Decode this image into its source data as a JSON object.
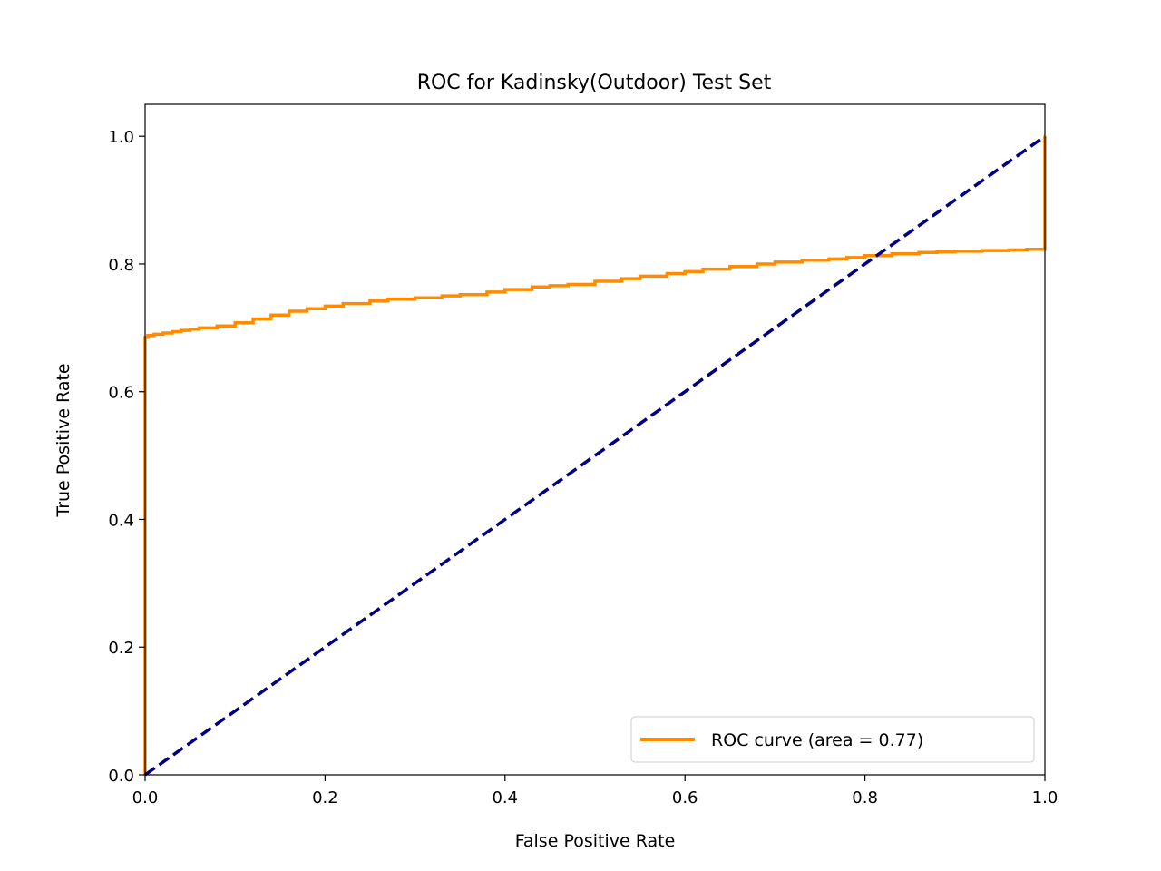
{
  "chart_data": {
    "type": "line",
    "title": "ROC for Kadinsky(Outdoor) Test Set",
    "xlabel": "False Positive Rate",
    "ylabel": "True Positive Rate",
    "xlim": [
      0.0,
      1.0
    ],
    "ylim": [
      0.0,
      1.05
    ],
    "x_ticks": [
      "0.0",
      "0.2",
      "0.4",
      "0.6",
      "0.8",
      "1.0"
    ],
    "y_ticks": [
      "0.0",
      "0.2",
      "0.4",
      "0.6",
      "0.8",
      "1.0"
    ],
    "grid": false,
    "legend_position": "lower-right",
    "series": [
      {
        "name": "ROC curve (area = 0.77)",
        "color": "#ff8c00",
        "style": "solid",
        "step": true,
        "x": [
          0.0,
          0.0,
          0.003,
          0.01,
          0.02,
          0.03,
          0.04,
          0.05,
          0.06,
          0.08,
          0.1,
          0.12,
          0.14,
          0.16,
          0.18,
          0.2,
          0.22,
          0.25,
          0.27,
          0.3,
          0.33,
          0.35,
          0.38,
          0.4,
          0.43,
          0.45,
          0.47,
          0.5,
          0.53,
          0.55,
          0.58,
          0.6,
          0.62,
          0.65,
          0.68,
          0.7,
          0.73,
          0.76,
          0.78,
          0.8,
          0.83,
          0.86,
          0.88,
          0.9,
          0.93,
          0.96,
          0.98,
          1.0,
          1.0
        ],
        "y": [
          0.0,
          0.685,
          0.688,
          0.69,
          0.692,
          0.694,
          0.696,
          0.698,
          0.7,
          0.703,
          0.708,
          0.714,
          0.72,
          0.726,
          0.73,
          0.734,
          0.738,
          0.742,
          0.745,
          0.747,
          0.75,
          0.752,
          0.756,
          0.76,
          0.764,
          0.766,
          0.768,
          0.773,
          0.777,
          0.781,
          0.785,
          0.788,
          0.792,
          0.796,
          0.8,
          0.803,
          0.806,
          0.808,
          0.81,
          0.813,
          0.816,
          0.818,
          0.819,
          0.82,
          0.821,
          0.822,
          0.823,
          0.824,
          1.0
        ]
      },
      {
        "name": "",
        "color": "#000080",
        "style": "dashed",
        "step": false,
        "x": [
          0.0,
          1.0
        ],
        "y": [
          0.0,
          1.0
        ]
      }
    ]
  }
}
